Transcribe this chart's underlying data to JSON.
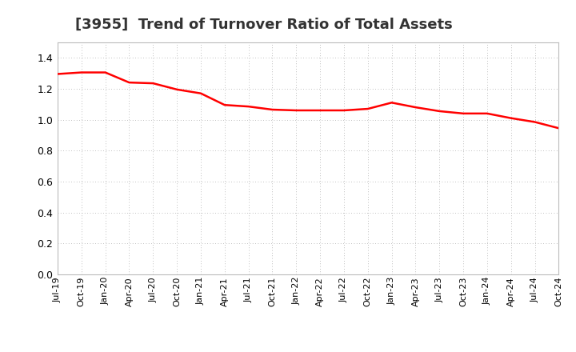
{
  "title": "[3955]  Trend of Turnover Ratio of Total Assets",
  "title_fontsize": 13,
  "title_fontweight": "bold",
  "title_color": "#333333",
  "line_color": "#FF0000",
  "line_width": 1.8,
  "background_color": "#FFFFFF",
  "plot_bg_color": "#FFFFFF",
  "grid_color": "#AAAAAA",
  "ylim": [
    0.0,
    1.5
  ],
  "yticks": [
    0.0,
    0.2,
    0.4,
    0.6,
    0.8,
    1.0,
    1.2,
    1.4
  ],
  "x_labels": [
    "Jul-19",
    "Oct-19",
    "Jan-20",
    "Apr-20",
    "Jul-20",
    "Oct-20",
    "Jan-21",
    "Apr-21",
    "Jul-21",
    "Oct-21",
    "Jan-22",
    "Apr-22",
    "Jul-22",
    "Oct-22",
    "Jan-23",
    "Apr-23",
    "Jul-23",
    "Oct-23",
    "Jan-24",
    "Apr-24",
    "Jul-24",
    "Oct-24"
  ],
  "values": [
    1.295,
    1.305,
    1.305,
    1.24,
    1.235,
    1.195,
    1.17,
    1.095,
    1.085,
    1.065,
    1.06,
    1.06,
    1.06,
    1.07,
    1.11,
    1.08,
    1.055,
    1.04,
    1.04,
    1.01,
    0.985,
    0.945
  ]
}
